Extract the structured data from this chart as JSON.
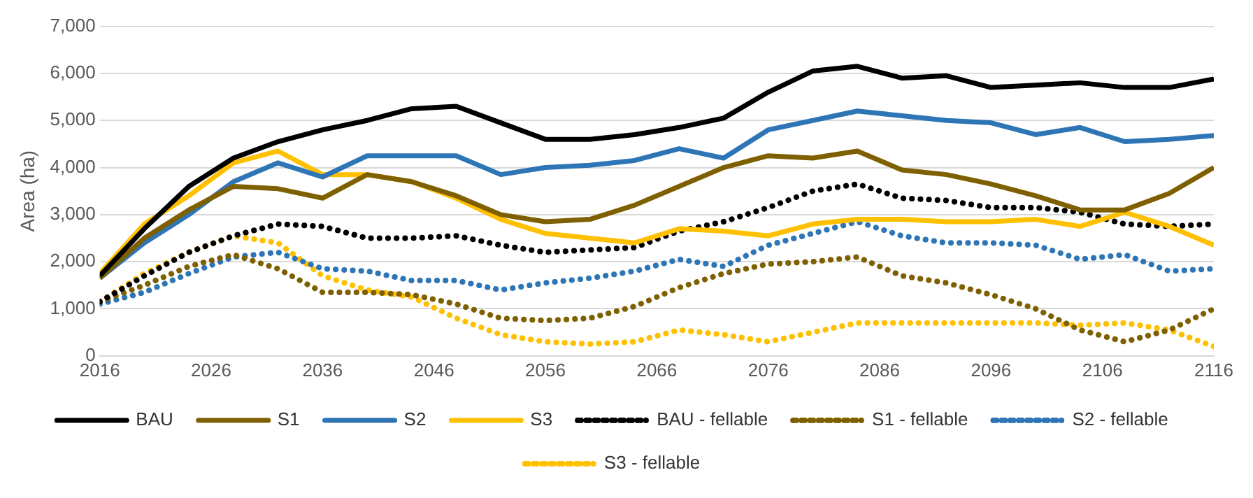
{
  "chart_data": {
    "type": "line",
    "ylabel": "Area (ha)",
    "x": [
      2016,
      2020,
      2024,
      2028,
      2032,
      2036,
      2040,
      2044,
      2048,
      2052,
      2056,
      2060,
      2064,
      2068,
      2072,
      2076,
      2080,
      2084,
      2088,
      2092,
      2096,
      2100,
      2104,
      2108,
      2112,
      2116
    ],
    "xlim": [
      2016,
      2116
    ],
    "xticks": [
      2016,
      2026,
      2036,
      2046,
      2056,
      2066,
      2076,
      2086,
      2096,
      2106,
      2116
    ],
    "ylim": [
      0,
      7000
    ],
    "yticks": [
      {
        "value": 0,
        "label": "0"
      },
      {
        "value": 1000,
        "label": "1,000"
      },
      {
        "value": 2000,
        "label": "2,000"
      },
      {
        "value": 3000,
        "label": "3,000"
      },
      {
        "value": 4000,
        "label": "4,000"
      },
      {
        "value": 5000,
        "label": "5,000"
      },
      {
        "value": 6000,
        "label": "6,000"
      },
      {
        "value": 7000,
        "label": "7,000"
      }
    ],
    "grid": "y",
    "legend": "bottom",
    "marker": "none",
    "series": [
      {
        "name": "BAU",
        "color": "#000000",
        "line_style": "solid",
        "values": [
          1700,
          2700,
          3600,
          4200,
          4550,
          4800,
          5000,
          5250,
          5300,
          4950,
          4600,
          4600,
          4700,
          4850,
          5050,
          5600,
          6050,
          6150,
          5900,
          5950,
          5700,
          5750,
          5800,
          5700,
          5700,
          5880
        ]
      },
      {
        "name": "S1",
        "color": "#7f6000",
        "line_style": "solid",
        "values": [
          1650,
          2500,
          3100,
          3600,
          3550,
          3350,
          3850,
          3700,
          3400,
          3000,
          2850,
          2900,
          3200,
          3600,
          4000,
          4250,
          4200,
          4350,
          3950,
          3850,
          3650,
          3400,
          3100,
          3100,
          3450,
          4000
        ]
      },
      {
        "name": "S2",
        "color": "#2e75b6",
        "line_style": "solid",
        "values": [
          1650,
          2400,
          3000,
          3700,
          4100,
          3800,
          4250,
          4250,
          4250,
          3850,
          4000,
          4050,
          4150,
          4400,
          4200,
          4800,
          5000,
          5200,
          5100,
          5000,
          4950,
          4700,
          4850,
          4550,
          4600,
          4680
        ]
      },
      {
        "name": "S3",
        "color": "#ffc000",
        "line_style": "solid",
        "values": [
          1750,
          2800,
          3400,
          4100,
          4350,
          3850,
          3850,
          3700,
          3350,
          2900,
          2600,
          2500,
          2400,
          2700,
          2650,
          2550,
          2800,
          2900,
          2900,
          2850,
          2850,
          2900,
          2750,
          3050,
          2750,
          2350
        ]
      },
      {
        "name": "BAU - fellable",
        "color": "#000000",
        "line_style": "dotted",
        "values": [
          1150,
          1700,
          2200,
          2550,
          2800,
          2750,
          2500,
          2500,
          2550,
          2350,
          2200,
          2250,
          2300,
          2650,
          2850,
          3150,
          3500,
          3650,
          3350,
          3300,
          3150,
          3150,
          3050,
          2800,
          2750,
          2800
        ]
      },
      {
        "name": "S1 - fellable",
        "color": "#7f6000",
        "line_style": "dotted",
        "values": [
          1150,
          1500,
          1900,
          2150,
          1850,
          1350,
          1350,
          1300,
          1100,
          800,
          750,
          800,
          1050,
          1450,
          1750,
          1950,
          2000,
          2100,
          1700,
          1550,
          1300,
          1000,
          550,
          300,
          550,
          1000
        ]
      },
      {
        "name": "S2 - fellable",
        "color": "#2e75b6",
        "line_style": "dotted",
        "values": [
          1100,
          1350,
          1750,
          2100,
          2200,
          1850,
          1800,
          1600,
          1600,
          1400,
          1550,
          1650,
          1800,
          2050,
          1900,
          2350,
          2600,
          2850,
          2550,
          2400,
          2400,
          2350,
          2050,
          2150,
          1800,
          1850
        ]
      },
      {
        "name": "S3 - fellable",
        "color": "#ffc000",
        "line_style": "dotted",
        "values": [
          1150,
          1750,
          2200,
          2550,
          2400,
          1700,
          1400,
          1250,
          800,
          450,
          300,
          250,
          300,
          550,
          450,
          300,
          500,
          700,
          700,
          700,
          700,
          700,
          650,
          700,
          550,
          200
        ]
      }
    ]
  }
}
